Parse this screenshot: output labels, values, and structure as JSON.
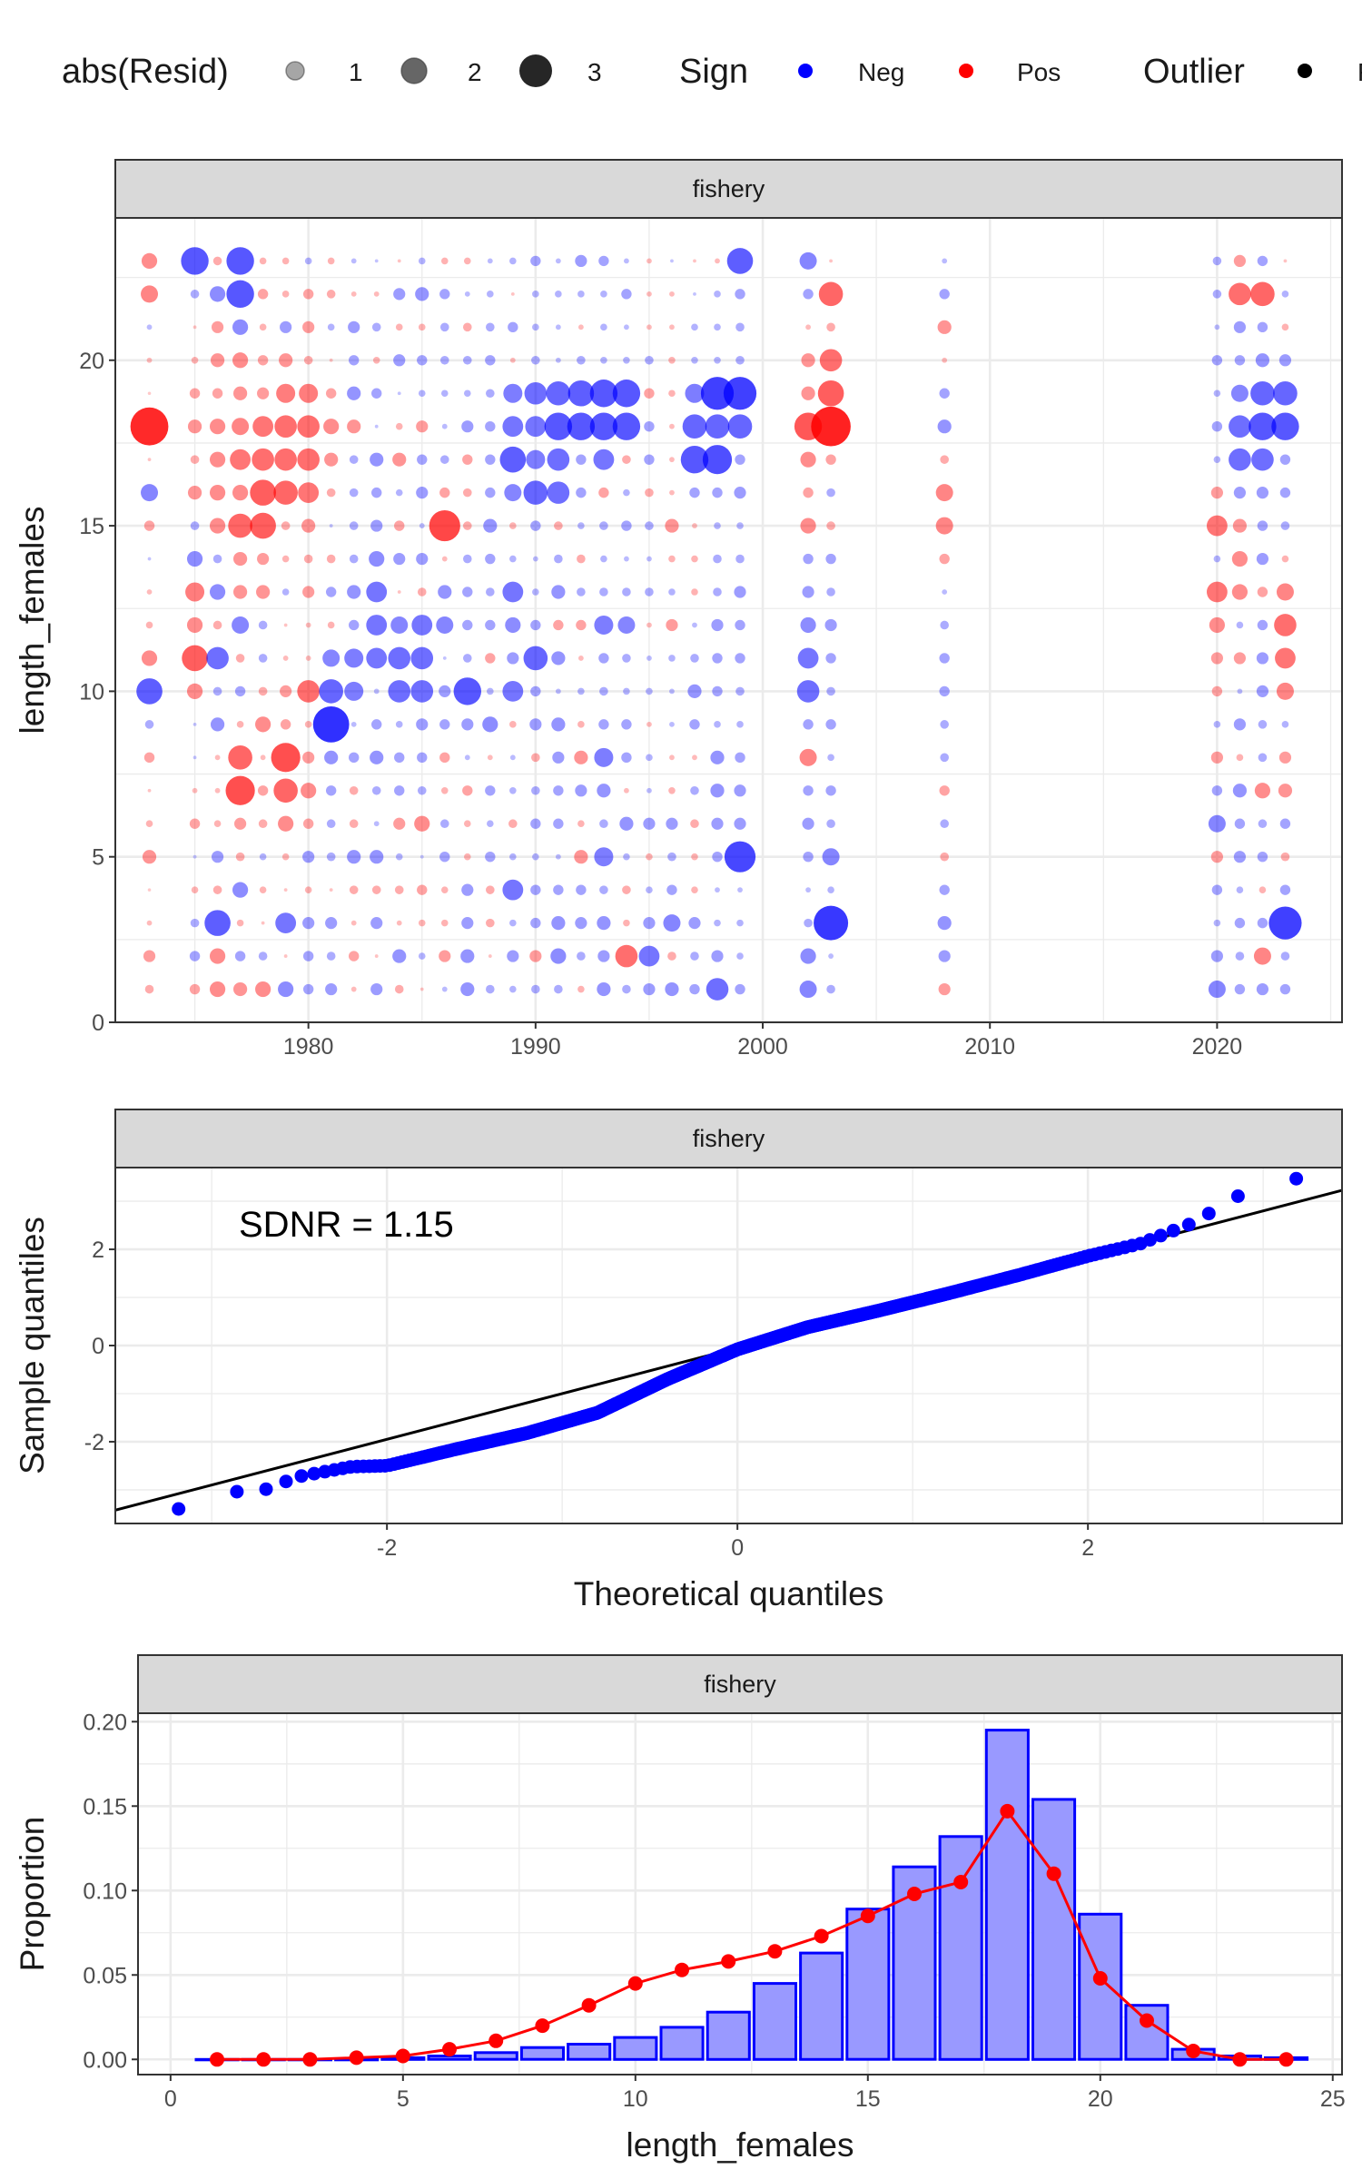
{
  "legend": {
    "size_title": "abs(Resid)",
    "size_items": [
      "1",
      "2",
      "3"
    ],
    "sign_title": "Sign",
    "sign_items": [
      {
        "label": "Neg",
        "color": "#0000ff"
      },
      {
        "label": "Pos",
        "color": "#ff0000"
      }
    ],
    "outlier_title": "Outlier",
    "outlier_item": "F"
  },
  "chart_data": [
    {
      "type": "scatter",
      "panel": "bubble",
      "strip": "fishery",
      "xlabel": "",
      "ylabel": "length_females",
      "xlim": [
        1971.5,
        2025.5
      ],
      "ylim": [
        0,
        24.3
      ],
      "xticks": [
        "1980",
        "1990",
        "2000",
        "2010",
        "2020"
      ],
      "yticks": [
        "0",
        "5",
        "10",
        "15",
        "20"
      ],
      "years": [
        1973,
        1975,
        1976,
        1977,
        1978,
        1979,
        1980,
        1981,
        1982,
        1983,
        1984,
        1985,
        1986,
        1987,
        1988,
        1989,
        1990,
        1991,
        1992,
        1993,
        1994,
        1995,
        1996,
        1997,
        1998,
        1999,
        2002,
        2003,
        2008,
        2020,
        2021,
        2022,
        2023
      ],
      "lengths": [
        1,
        2,
        3,
        4,
        5,
        6,
        7,
        8,
        9,
        10,
        11,
        12,
        13,
        14,
        15,
        16,
        17,
        18,
        19,
        20,
        21,
        22,
        23
      ],
      "colors": {
        "neg": "#0000ff",
        "pos": "#ff0000"
      },
      "residuals": [
        [
          0.5,
          0.7,
          0.3,
          0.1,
          0.8,
          0.4,
          0.2,
          0.6,
          -0.5,
          -1.5,
          0.9,
          0.4,
          0.3,
          -0.2,
          0.6,
          -1.0,
          0.2,
          2.2,
          0.1,
          0.3,
          -0.3,
          1.0,
          0.9
        ],
        [
          0.6,
          -0.6,
          -0.5,
          0.4,
          -0.2,
          0.6,
          0.3,
          -0.2,
          -0.2,
          0.9,
          1.5,
          0.9,
          1.1,
          -0.9,
          -0.5,
          0.8,
          0.5,
          0.8,
          0.6,
          0.4,
          0.2,
          -0.5,
          -1.6
        ],
        [
          0.9,
          0.9,
          -1.5,
          0.5,
          -0.7,
          0.4,
          0.3,
          0.3,
          -0.8,
          -0.5,
          -1.3,
          0.5,
          -0.9,
          -0.5,
          0.9,
          0.9,
          0.9,
          0.9,
          0.6,
          0.8,
          0.7,
          -0.9,
          0.5
        ],
        [
          0.8,
          -0.6,
          0.4,
          -0.9,
          0.5,
          0.7,
          1.7,
          1.4,
          0.4,
          -0.6,
          0.5,
          -1.0,
          0.8,
          0.8,
          1.4,
          0.9,
          1.2,
          1.0,
          0.8,
          0.9,
          -0.9,
          -1.6,
          -1.6
        ],
        [
          0.9,
          -0.5,
          0.2,
          0.4,
          -0.4,
          0.5,
          0.6,
          0.3,
          0.9,
          0.5,
          -0.5,
          -0.5,
          0.8,
          0.7,
          1.5,
          1.5,
          1.3,
          1.2,
          0.7,
          0.6,
          0.4,
          0.6,
          0.4
        ],
        [
          -0.9,
          0.2,
          -1.2,
          0.2,
          0.4,
          0.9,
          1.4,
          1.7,
          0.6,
          0.7,
          0.3,
          0.2,
          -0.4,
          0.4,
          0.5,
          1.4,
          1.3,
          1.3,
          1.1,
          0.8,
          -0.7,
          0.4,
          0.4
        ],
        [
          -0.6,
          -0.6,
          -0.7,
          0.4,
          -0.7,
          0.6,
          0.9,
          0.7,
          0.4,
          1.3,
          0.3,
          0.3,
          0.7,
          0.5,
          0.8,
          1.2,
          1.3,
          1.3,
          1.1,
          0.5,
          0.7,
          0.6,
          -0.4
        ],
        [
          -0.7,
          -0.5,
          -0.7,
          0.2,
          -0.5,
          -0.5,
          -0.6,
          -0.8,
          -2.1,
          -1.4,
          -1.0,
          0.4,
          -0.6,
          0.5,
          -0.2,
          0.5,
          0.8,
          0.9,
          0.6,
          0.2,
          -0.4,
          0.5,
          0.4
        ],
        [
          0.3,
          0.6,
          0.3,
          0.5,
          -0.8,
          0.5,
          0.5,
          -0.6,
          -0.3,
          -1.1,
          -1.1,
          -0.6,
          -0.8,
          -0.5,
          -0.5,
          -0.5,
          -0.5,
          0.8,
          -0.8,
          -0.6,
          -0.7,
          0.3,
          -0.3
        ],
        [
          -0.7,
          0.2,
          -0.7,
          0.5,
          -0.8,
          -0.3,
          -0.5,
          -0.8,
          -0.6,
          -0.3,
          -1.2,
          -1.2,
          -1.2,
          -0.9,
          -0.7,
          -0.6,
          -0.8,
          -0.2,
          -0.6,
          0.4,
          -0.5,
          0.3,
          -0.2
        ],
        [
          0.5,
          -0.8,
          0.3,
          0.5,
          -0.4,
          0.7,
          -0.6,
          -0.6,
          -0.4,
          -1.3,
          -1.3,
          -1.0,
          0.2,
          -0.7,
          0.6,
          -0.4,
          0.8,
          0.4,
          -0.2,
          -0.7,
          0.4,
          -0.7,
          0.2
        ],
        [
          0.2,
          -0.4,
          0.4,
          0.6,
          -0.2,
          0.9,
          -0.5,
          -0.6,
          -0.7,
          -1.3,
          -1.3,
          -1.2,
          0.5,
          -0.7,
          -0.3,
          -0.7,
          -0.6,
          0.7,
          -0.4,
          -0.6,
          0.4,
          -0.8,
          -0.4
        ],
        [
          -0.3,
          0.7,
          0.4,
          0.4,
          -0.6,
          -0.5,
          0.4,
          0.6,
          -0.6,
          -0.7,
          -0.2,
          -1.0,
          -0.8,
          0.3,
          1.8,
          0.6,
          -0.5,
          -0.3,
          -0.4,
          -0.5,
          -0.5,
          -0.6,
          0.4
        ],
        [
          -0.8,
          -0.8,
          -0.7,
          -0.7,
          0.4,
          0.4,
          0.6,
          -0.3,
          -0.7,
          -1.6,
          -0.5,
          -0.6,
          -0.6,
          -0.5,
          0.5,
          0.5,
          0.6,
          -0.7,
          -0.4,
          -0.5,
          0.5,
          -0.3,
          0.4
        ],
        [
          -0.5,
          0.2,
          0.5,
          0.5,
          -0.6,
          -0.4,
          -0.6,
          0.3,
          -0.9,
          -0.4,
          0.6,
          -0.6,
          -0.5,
          -0.6,
          -0.8,
          -0.6,
          -0.6,
          -0.6,
          -0.5,
          -0.6,
          -0.5,
          -0.4,
          -0.3
        ],
        [
          -0.4,
          -0.7,
          -0.4,
          -1.2,
          -0.4,
          0.5,
          -0.4,
          -0.3,
          0.4,
          -1.2,
          -0.7,
          -0.9,
          -1.2,
          -0.4,
          0.4,
          -1.0,
          -1.5,
          -1.2,
          -1.1,
          0.3,
          -0.6,
          0.2,
          -0.4
        ],
        [
          -0.5,
          0.7,
          -0.6,
          -0.6,
          -0.4,
          -0.6,
          -0.5,
          0.5,
          -0.7,
          -0.6,
          -1.4,
          -0.6,
          -0.4,
          -0.3,
          -0.6,
          -1.4,
          -1.1,
          -1.2,
          -1.3,
          -0.5,
          -0.4,
          -0.4,
          -0.6
        ],
        [
          -0.5,
          -0.9,
          -0.8,
          -0.6,
          -0.3,
          -0.6,
          -0.6,
          -0.7,
          -0.8,
          -0.3,
          -0.8,
          0.6,
          -0.8,
          -0.5,
          0.5,
          -1.3,
          -1.3,
          -1.6,
          -1.4,
          -0.3,
          -0.3,
          -0.4,
          -0.3
        ],
        [
          0.4,
          -0.5,
          -0.7,
          -0.6,
          0.8,
          0.4,
          -0.7,
          0.8,
          0.4,
          -0.4,
          0.3,
          0.6,
          -0.5,
          0.5,
          -0.4,
          -0.6,
          -0.6,
          -1.6,
          -1.5,
          -0.5,
          0.3,
          -0.4,
          -0.7
        ],
        [
          -0.8,
          -0.7,
          -0.8,
          -0.5,
          -1.1,
          -0.5,
          -0.8,
          -1.1,
          -0.6,
          -0.5,
          -0.6,
          -1.1,
          -0.5,
          -0.4,
          -0.5,
          0.6,
          -1.2,
          -1.6,
          -1.6,
          -0.4,
          -0.4,
          -0.4,
          -0.6
        ],
        [
          -0.5,
          1.3,
          0.4,
          0.5,
          -0.4,
          -0.8,
          0.3,
          -0.6,
          -0.6,
          -0.4,
          -0.5,
          -1.0,
          -0.5,
          -0.3,
          -0.6,
          -0.4,
          0.5,
          -1.6,
          -1.6,
          -0.4,
          -0.3,
          -0.6,
          -0.3
        ],
        [
          -0.7,
          -1.2,
          -0.7,
          -0.4,
          0.4,
          -0.7,
          -0.3,
          -0.4,
          0.3,
          -0.4,
          -0.3,
          0.3,
          -0.5,
          -0.3,
          -0.5,
          0.5,
          -0.6,
          -0.6,
          0.6,
          -0.5,
          0.3,
          0.3,
          0.3
        ],
        [
          -0.8,
          0.5,
          -1.0,
          -0.6,
          -0.5,
          -0.7,
          0.4,
          0.3,
          -0.3,
          -0.3,
          -0.4,
          0.7,
          -0.4,
          0.4,
          0.8,
          0.3,
          0.3,
          0.3,
          0.4,
          0.4,
          0.3,
          0.3,
          -0.2
        ],
        [
          -0.6,
          -0.5,
          -0.7,
          0.4,
          0.4,
          0.5,
          -0.5,
          0.3,
          -0.6,
          -0.8,
          -0.5,
          -0.3,
          0.4,
          0.4,
          0.3,
          -0.6,
          -1.6,
          -1.4,
          -1.1,
          -0.4,
          -0.4,
          -0.2,
          0.2
        ],
        [
          -1.3,
          -0.7,
          -0.4,
          -0.3,
          -0.6,
          -0.7,
          -0.8,
          -0.8,
          -0.4,
          -0.6,
          -0.6,
          -0.7,
          -0.5,
          -0.5,
          -0.4,
          -0.6,
          -1.7,
          -1.4,
          -1.9,
          -0.4,
          -0.4,
          -0.4,
          0.3
        ],
        [
          -0.6,
          -0.4,
          -0.4,
          -0.3,
          -1.8,
          -0.7,
          -0.7,
          -0.6,
          -0.4,
          -0.5,
          -0.6,
          -0.6,
          -0.7,
          -0.5,
          -0.4,
          -0.7,
          -0.6,
          -1.4,
          -1.9,
          -0.5,
          -0.5,
          -0.6,
          -1.5
        ],
        [
          -1.0,
          -0.9,
          -0.5,
          -0.3,
          -0.6,
          -0.7,
          -0.6,
          1.0,
          -0.6,
          -1.3,
          -1.2,
          -0.9,
          -0.7,
          -0.6,
          0.9,
          0.6,
          0.9,
          1.6,
          0.8,
          0.8,
          0.3,
          -0.6,
          -1.0
        ],
        [
          -0.5,
          -0.3,
          -2.0,
          -0.4,
          -1.0,
          -0.5,
          -0.6,
          -0.4,
          -0.6,
          -0.5,
          -0.6,
          -0.7,
          -0.5,
          -0.6,
          0.5,
          -0.5,
          0.6,
          2.3,
          1.5,
          1.3,
          0.5,
          1.4,
          0.2
        ],
        [
          0.7,
          -0.7,
          -0.8,
          -0.6,
          0.5,
          -0.5,
          0.6,
          -0.5,
          -0.5,
          -0.6,
          -0.6,
          -0.5,
          -0.3,
          0.6,
          1.0,
          1.0,
          0.5,
          -0.8,
          -0.6,
          0.3,
          0.8,
          -0.6,
          -0.3
        ],
        [
          -1.0,
          -0.7,
          -0.4,
          -0.6,
          0.7,
          -1.0,
          -0.6,
          0.7,
          -0.4,
          0.6,
          0.7,
          0.9,
          1.2,
          -0.4,
          1.2,
          0.7,
          -0.4,
          -0.6,
          -0.4,
          -0.6,
          -0.3,
          -0.5,
          -0.5
        ],
        [
          -0.6,
          -0.5,
          -0.6,
          -0.4,
          -0.7,
          -0.6,
          -0.8,
          0.4,
          -0.7,
          -0.3,
          0.7,
          -0.4,
          0.9,
          0.9,
          0.8,
          -0.7,
          -1.3,
          -1.3,
          -1.0,
          -0.6,
          -0.7,
          1.3,
          0.7
        ],
        [
          -0.7,
          1.0,
          -0.6,
          0.4,
          -0.6,
          -0.5,
          0.9,
          -0.5,
          -0.5,
          -0.7,
          -0.7,
          -0.6,
          0.6,
          -0.7,
          -0.6,
          -0.7,
          -1.3,
          -1.6,
          -1.4,
          -0.8,
          -0.6,
          1.4,
          -0.6
        ],
        [
          -0.6,
          -0.5,
          -1.9,
          -0.6,
          0.5,
          -0.6,
          0.8,
          0.7,
          -0.4,
          1.0,
          1.2,
          1.3,
          1.0,
          0.4,
          -0.5,
          -0.6,
          -0.6,
          -1.6,
          -1.4,
          -0.7,
          0.4,
          -0.4,
          0.2
        ]
      ]
    },
    {
      "type": "scatter",
      "panel": "qq",
      "strip": "fishery",
      "annotation": "SDNR = 1.15",
      "xlabel": "Theoretical quantiles",
      "ylabel": "Sample quantiles",
      "xlim": [
        -3.55,
        3.45
      ],
      "ylim": [
        -3.7,
        3.7
      ],
      "xticks": [
        "-2",
        "0",
        "2"
      ],
      "yticks": [
        "-2",
        "0",
        "2"
      ],
      "n_points": 700,
      "points_color": "#0000ff",
      "line": {
        "intercept": -0.05,
        "slope": 0.95,
        "color": "#000000"
      },
      "quantile_knots": {
        "x": [
          -3.29,
          -2.9,
          -2.7,
          -2.5,
          -2.2,
          -2.0,
          -1.6,
          -1.2,
          -0.8,
          -0.4,
          0.0,
          0.4,
          0.8,
          1.2,
          1.6,
          2.0,
          2.3,
          2.6,
          2.9,
          3.2
        ],
        "y": [
          -3.52,
          -3.05,
          -3.0,
          -2.72,
          -2.52,
          -2.5,
          -2.15,
          -1.82,
          -1.4,
          -0.7,
          -0.08,
          0.38,
          0.72,
          1.08,
          1.46,
          1.86,
          2.12,
          2.55,
          3.2,
          3.48
        ]
      }
    },
    {
      "type": "bar",
      "panel": "composition",
      "strip": "fishery",
      "xlabel": "length_females",
      "ylabel": "Proportion",
      "xlim": [
        -0.7,
        25.2
      ],
      "ylim": [
        -0.009,
        0.205
      ],
      "xticks": [
        "0",
        "5",
        "10",
        "15",
        "20",
        "25"
      ],
      "yticks": [
        "0.00",
        "0.05",
        "0.10",
        "0.15",
        "0.20"
      ],
      "categories": [
        1,
        2,
        3,
        4,
        5,
        6,
        7,
        8,
        9,
        10,
        11,
        12,
        13,
        14,
        15,
        16,
        17,
        18,
        19,
        20,
        21,
        22,
        23,
        24
      ],
      "series": [
        {
          "type": "bar",
          "values": [
            0.0,
            0.0,
            0.0,
            0.0,
            0.001,
            0.002,
            0.004,
            0.007,
            0.009,
            0.013,
            0.019,
            0.028,
            0.045,
            0.063,
            0.089,
            0.114,
            0.132,
            0.195,
            0.154,
            0.086,
            0.032,
            0.006,
            0.002,
            0.001
          ],
          "fill": "#9999ff",
          "stroke": "#0000ff"
        },
        {
          "type": "line",
          "values": [
            0.0,
            0.0,
            0.0,
            0.001,
            0.002,
            0.006,
            0.011,
            0.02,
            0.032,
            0.045,
            0.053,
            0.058,
            0.064,
            0.073,
            0.085,
            0.098,
            0.105,
            0.147,
            0.11,
            0.048,
            0.023,
            0.005,
            0.0,
            0.0
          ],
          "color": "#ff0000"
        }
      ]
    }
  ]
}
